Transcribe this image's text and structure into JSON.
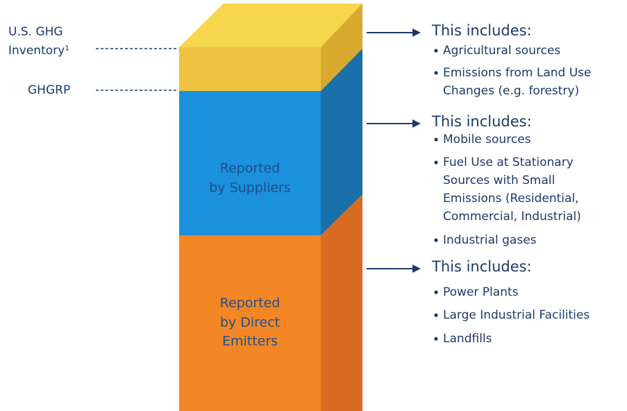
{
  "labels": {
    "inventory": [
      "U.S. GHG",
      "Inventory¹"
    ],
    "ghgrp": "GHGRP"
  },
  "blocks": {
    "suppliers": [
      "Reported",
      "by Suppliers"
    ],
    "direct": [
      "Reported",
      "by Direct",
      "Emitters"
    ]
  },
  "groups": [
    {
      "heading": "This includes:",
      "items": [
        [
          "Agricultural sources"
        ],
        [
          "Emissions from Land Use",
          "Changes (e.g. forestry)"
        ]
      ]
    },
    {
      "heading": "This includes:",
      "items": [
        [
          "Mobile sources"
        ],
        [
          "Fuel Use at Stationary",
          "Sources with Small",
          "Emissions (Residential,",
          "Commercial, Industrial)"
        ],
        [
          "Industrial gases"
        ]
      ]
    },
    {
      "heading": "This includes:",
      "items": [
        [
          "Power Plants"
        ],
        [
          "Large Industrial Facilities"
        ],
        [
          "Landfills"
        ]
      ]
    }
  ]
}
